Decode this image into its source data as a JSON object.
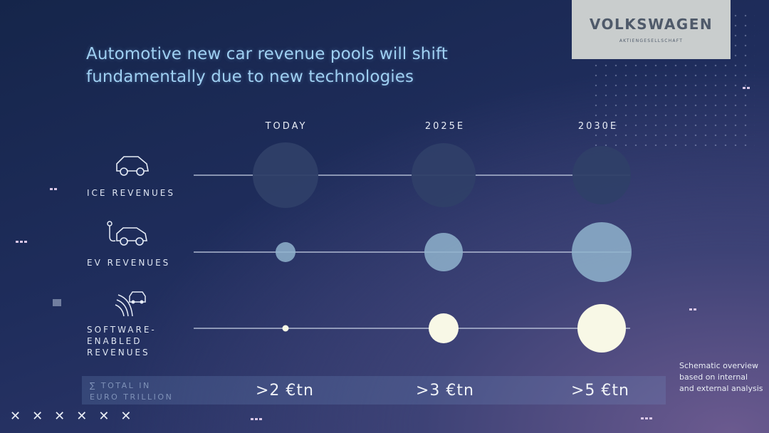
{
  "title_lines": [
    "Automotive new car revenue pools will shift",
    "fundamentally due to new technologies"
  ],
  "logo": {
    "name": "VOLKSWAGEN",
    "sub": "AKTIENGESELLSCHAFT"
  },
  "colors": {
    "ice": "#2f3f68",
    "ev": "#8fb3cc",
    "software": "#f8f8e6",
    "line": "#c9d3e6"
  },
  "icons": {
    "ice": "car-icon",
    "ev": "electric-car-icon",
    "software": "connected-car-icon"
  },
  "total": {
    "label": "∑ TOTAL IN\nEURO TRILLION",
    "values": [
      ">2 €tn",
      ">3 €tn",
      ">5 €tn"
    ]
  },
  "note": "Schematic overview based on internal and external analysis",
  "chart_data": {
    "type": "bubble",
    "categories": [
      "TODAY",
      "2025E",
      "2030E"
    ],
    "series": [
      {
        "name": "ICE REVENUES",
        "values": [
          46,
          45,
          41
        ]
      },
      {
        "name": "EV REVENUES",
        "values": [
          14,
          27,
          42
        ]
      },
      {
        "name": "SOFTWARE-\nENABLED\nREVENUES",
        "values": [
          4.5,
          21,
          34
        ]
      }
    ],
    "value_note": "relative bubble radius (schematic)",
    "title": "Automotive new car revenue pools will shift fundamentally due to new technologies",
    "totals": [
      ">2 €tn",
      ">3 €tn",
      ">5 €tn"
    ]
  }
}
